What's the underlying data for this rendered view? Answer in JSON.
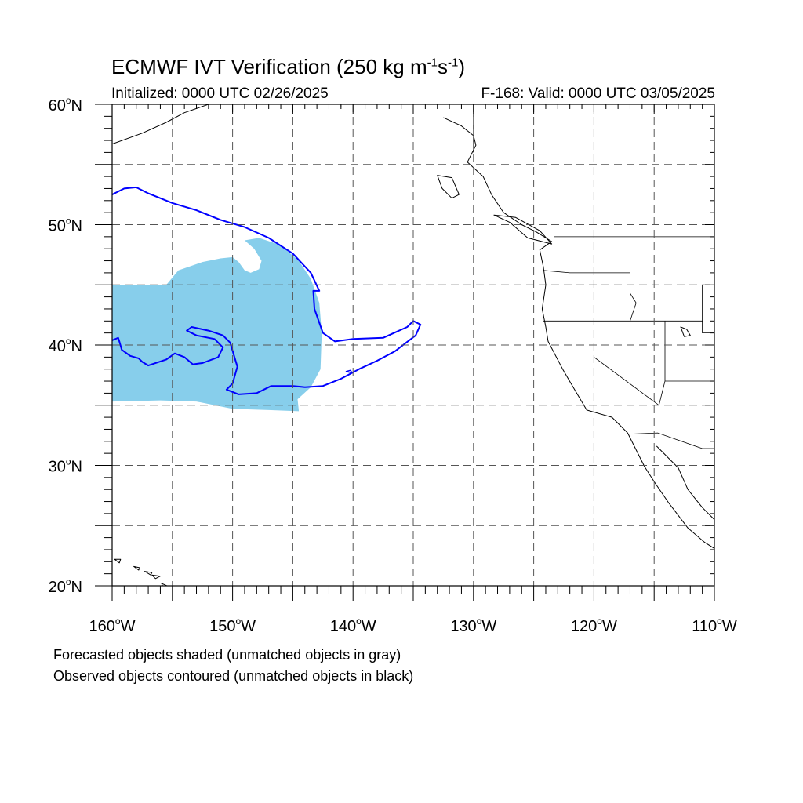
{
  "header": {
    "title_main": "ECMWF IVT Verification (250 kg m",
    "title_exp1": "-1",
    "title_mid": "s",
    "title_exp2": "-1",
    "title_end": ")",
    "initialized": "Initialized: 0000 UTC 02/26/2025",
    "valid": "F-168: Valid: 0000 UTC 03/05/2025"
  },
  "map": {
    "lon_range": [
      -160,
      -110
    ],
    "lat_range": [
      20,
      60
    ],
    "lat_labels": [
      {
        "lat": 60,
        "deg": "60",
        "hemi": "N"
      },
      {
        "lat": 50,
        "deg": "50",
        "hemi": "N"
      },
      {
        "lat": 40,
        "deg": "40",
        "hemi": "N"
      },
      {
        "lat": 30,
        "deg": "30",
        "hemi": "N"
      },
      {
        "lat": 20,
        "deg": "20",
        "hemi": "N"
      }
    ],
    "lon_labels": [
      {
        "lon": -160,
        "deg": "160",
        "hemi": "W"
      },
      {
        "lon": -150,
        "deg": "150",
        "hemi": "W"
      },
      {
        "lon": -140,
        "deg": "140",
        "hemi": "W"
      },
      {
        "lon": -130,
        "deg": "130",
        "hemi": "W"
      },
      {
        "lon": -120,
        "deg": "120",
        "hemi": "W"
      },
      {
        "lon": -110,
        "deg": "110",
        "hemi": "W"
      }
    ],
    "grid_lons": [
      -155,
      -150,
      -145,
      -140,
      -135,
      -130,
      -125,
      -120,
      -115
    ],
    "grid_lats": [
      25,
      30,
      35,
      40,
      45,
      50,
      55
    ],
    "gridlines": "dashed",
    "forecast_color": "#87ceeb",
    "observed_color": "#0000ff",
    "forecast_object": [
      [
        -160,
        45.0
      ],
      [
        -155.5,
        45.0
      ],
      [
        -154.5,
        46.2
      ],
      [
        -152.5,
        46.9
      ],
      [
        -151.0,
        47.2
      ],
      [
        -150.0,
        47.3
      ],
      [
        -149.5,
        46.9
      ],
      [
        -149.0,
        46.2
      ],
      [
        -148.5,
        46.0
      ],
      [
        -147.8,
        46.3
      ],
      [
        -147.6,
        47.0
      ],
      [
        -148.2,
        48.0
      ],
      [
        -149.0,
        48.7
      ],
      [
        -147.8,
        48.9
      ],
      [
        -146.0,
        48.3
      ],
      [
        -144.5,
        47.0
      ],
      [
        -143.5,
        45.5
      ],
      [
        -142.8,
        43.5
      ],
      [
        -142.6,
        41.0
      ],
      [
        -142.7,
        38.0
      ],
      [
        -143.5,
        36.5
      ],
      [
        -144.6,
        35.5
      ],
      [
        -144.5,
        34.5
      ],
      [
        -147.0,
        34.6
      ],
      [
        -150.0,
        34.7
      ],
      [
        -153.0,
        35.3
      ],
      [
        -156.0,
        35.4
      ],
      [
        -160.0,
        35.3
      ]
    ],
    "observed_contour": [
      [
        -160,
        52.5
      ],
      [
        -159.0,
        53.0
      ],
      [
        -158.0,
        53.1
      ],
      [
        -157.0,
        52.6
      ],
      [
        -155.0,
        51.8
      ],
      [
        -153.0,
        51.2
      ],
      [
        -151.0,
        50.4
      ],
      [
        -149.0,
        49.8
      ],
      [
        -147.0,
        48.9
      ],
      [
        -145.0,
        47.6
      ],
      [
        -143.5,
        46.0
      ],
      [
        -142.8,
        44.5
      ],
      [
        -143.3,
        44.5
      ],
      [
        -143.2,
        43.0
      ],
      [
        -142.5,
        41.0
      ],
      [
        -141.5,
        40.3
      ],
      [
        -140.0,
        40.5
      ],
      [
        -137.5,
        40.6
      ],
      [
        -135.5,
        41.5
      ],
      [
        -135.0,
        42.0
      ],
      [
        -134.4,
        41.7
      ],
      [
        -134.8,
        40.8
      ],
      [
        -136.5,
        39.5
      ],
      [
        -138.0,
        38.7
      ],
      [
        -139.5,
        38.0
      ],
      [
        -141.0,
        37.2
      ],
      [
        -142.5,
        36.6
      ],
      [
        -144.0,
        36.5
      ],
      [
        -145.0,
        36.6
      ],
      [
        -146.8,
        36.6
      ],
      [
        -148.0,
        36.0
      ],
      [
        -149.5,
        35.9
      ],
      [
        -150.5,
        36.3
      ],
      [
        -150.0,
        36.8
      ],
      [
        -149.6,
        38.2
      ],
      [
        -149.9,
        39.2
      ],
      [
        -150.2,
        40.2
      ],
      [
        -150.8,
        40.8
      ],
      [
        -152.0,
        41.2
      ],
      [
        -153.4,
        41.5
      ],
      [
        -153.8,
        41.2
      ],
      [
        -153.0,
        40.8
      ],
      [
        -151.5,
        40.5
      ],
      [
        -150.8,
        39.8
      ],
      [
        -151.2,
        39.0
      ],
      [
        -152.5,
        38.5
      ],
      [
        -153.3,
        38.4
      ],
      [
        -154.0,
        39.0
      ],
      [
        -154.8,
        39.3
      ],
      [
        -155.5,
        38.8
      ],
      [
        -157.0,
        38.3
      ],
      [
        -157.5,
        38.6
      ],
      [
        -157.8,
        38.9
      ],
      [
        -158.5,
        39.1
      ],
      [
        -159.2,
        39.6
      ],
      [
        -159.4,
        40.3
      ],
      [
        -159.5,
        40.6
      ],
      [
        -160,
        40.4
      ]
    ],
    "observed_small": [
      [
        -140.6,
        37.8
      ],
      [
        -140.1,
        37.7
      ],
      [
        -140.2,
        37.9
      ]
    ],
    "coastline": [
      [
        -132.5,
        58.9
      ],
      [
        -131.0,
        58.2
      ],
      [
        -130.0,
        57.4
      ],
      [
        -129.8,
        56.6
      ],
      [
        -130.5,
        55.2
      ],
      [
        -129.2,
        54.0
      ],
      [
        -128.5,
        52.5
      ],
      [
        -127.5,
        51.0
      ],
      [
        -126.0,
        50.0
      ],
      [
        -124.8,
        49.4
      ],
      [
        -123.5,
        48.6
      ],
      [
        -124.5,
        47.9
      ],
      [
        -124.2,
        46.5
      ],
      [
        -124.0,
        45.0
      ],
      [
        -124.3,
        43.0
      ],
      [
        -124.0,
        41.5
      ],
      [
        -123.8,
        40.3
      ],
      [
        -122.6,
        38.0
      ],
      [
        -121.9,
        36.8
      ],
      [
        -120.6,
        34.6
      ],
      [
        -118.5,
        34.0
      ],
      [
        -117.2,
        32.7
      ],
      [
        -116.6,
        31.5
      ],
      [
        -115.8,
        29.9
      ],
      [
        -114.9,
        28.5
      ],
      [
        -113.8,
        26.9
      ],
      [
        -112.2,
        24.8
      ],
      [
        -110.8,
        23.6
      ],
      [
        -110,
        23.1
      ]
    ],
    "coastline_alaska": [
      [
        -160,
        56.7
      ],
      [
        -157.5,
        57.6
      ],
      [
        -155.5,
        58.5
      ],
      [
        -154.0,
        59.3
      ],
      [
        -152.0,
        60
      ]
    ],
    "gulf_coast": [
      [
        -114.8,
        31.6
      ],
      [
        -113.0,
        29.8
      ],
      [
        -112.2,
        28.0
      ],
      [
        -111.0,
        26.5
      ],
      [
        -110,
        25.5
      ]
    ],
    "vancouver_island": [
      [
        -128.3,
        50.8
      ],
      [
        -127.0,
        50.2
      ],
      [
        -125.5,
        48.9
      ],
      [
        -123.5,
        48.4
      ],
      [
        -124.5,
        49.5
      ],
      [
        -126.5,
        50.6
      ],
      [
        -128.3,
        50.8
      ]
    ],
    "haida_gwaii": [
      [
        -133.0,
        54.1
      ],
      [
        -131.8,
        53.9
      ],
      [
        -131.2,
        52.5
      ],
      [
        -131.8,
        52.2
      ],
      [
        -132.6,
        53.0
      ],
      [
        -133.0,
        54.1
      ]
    ],
    "hawaii_islands": [
      [
        [
          -159.8,
          22.2
        ],
        [
          -159.3,
          22.2
        ],
        [
          -159.4,
          21.9
        ],
        [
          -159.8,
          22.2
        ]
      ],
      [
        [
          -158.2,
          21.6
        ],
        [
          -157.7,
          21.5
        ],
        [
          -157.8,
          21.3
        ],
        [
          -158.2,
          21.6
        ]
      ],
      [
        [
          -157.3,
          21.2
        ],
        [
          -156.7,
          21.1
        ],
        [
          -156.8,
          20.9
        ],
        [
          -157.3,
          21.2
        ]
      ],
      [
        [
          -156.7,
          20.9
        ],
        [
          -156.0,
          20.8
        ],
        [
          -156.4,
          20.6
        ],
        [
          -156.7,
          20.9
        ]
      ],
      [
        [
          -155.9,
          20.2
        ],
        [
          -155.0,
          19.8
        ],
        [
          -155.5,
          19.2
        ],
        [
          -155.9,
          20.2
        ]
      ]
    ],
    "political_boundaries": [
      [
        [
          -123.3,
          49
        ],
        [
          -110,
          49
        ]
      ],
      [
        [
          -117.0,
          49
        ],
        [
          -117.0,
          44.3
        ],
        [
          -116.5,
          43.5
        ],
        [
          -117.0,
          42
        ]
      ],
      [
        [
          -124.2,
          46.2
        ],
        [
          -122.0,
          46.0
        ],
        [
          -118.0,
          46.0
        ],
        [
          -117.0,
          46.0
        ]
      ],
      [
        [
          -124.2,
          42
        ],
        [
          -117.0,
          42
        ],
        [
          -111.0,
          42
        ]
      ],
      [
        [
          -120.0,
          42
        ],
        [
          -120.0,
          39.0
        ],
        [
          -114.6,
          35.0
        ]
      ],
      [
        [
          -114.1,
          42
        ],
        [
          -114.1,
          37.0
        ],
        [
          -114.6,
          35.0
        ]
      ],
      [
        [
          -114.1,
          37.0
        ],
        [
          -110,
          37.0
        ]
      ],
      [
        [
          -111.0,
          45.0
        ],
        [
          -111.0,
          41.0
        ],
        [
          -110,
          41.0
        ]
      ],
      [
        [
          -117.1,
          32.6
        ],
        [
          -114.7,
          32.7
        ],
        [
          -111.0,
          31.4
        ],
        [
          -110,
          31.4
        ]
      ],
      [
        [
          -130.0,
          56.0
        ],
        [
          -130.0,
          60
        ]
      ],
      [
        [
          -141.0,
          60
        ],
        [
          -141.0,
          59.8
        ]
      ]
    ],
    "lakes": [
      [
        [
          -112.8,
          41.5
        ],
        [
          -112.3,
          41.3
        ],
        [
          -112.0,
          40.8
        ],
        [
          -112.5,
          40.7
        ],
        [
          -112.8,
          41.5
        ]
      ]
    ]
  },
  "footer": {
    "line1": "Forecasted objects shaded (unmatched objects in gray)",
    "line2": "Observed objects contoured (unmatched objects in black)"
  }
}
